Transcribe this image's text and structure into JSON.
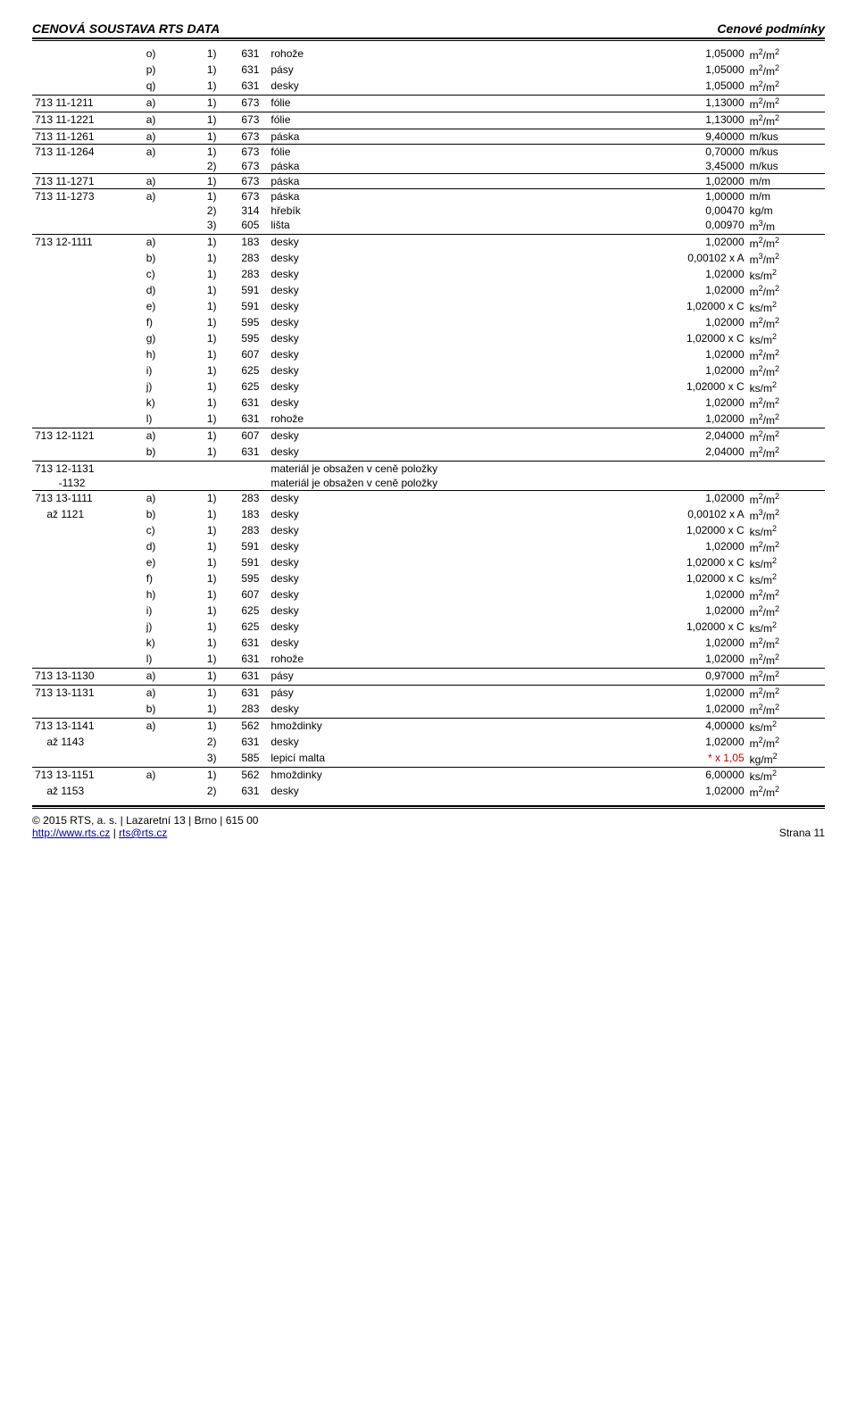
{
  "header": {
    "left": "CENOVÁ SOUSTAVA RTS DATA",
    "right": "Cenové podmínky"
  },
  "footer": {
    "left1": "© 2015 RTS, a. s. | Lazaretní 13 | Brno | 615 00",
    "left2a": "http://www.rts.cz",
    "left2b": " | ",
    "left2c": "rts@rts.cz",
    "right": "Strana 11"
  },
  "rows": [
    {
      "a": "",
      "b": "o)",
      "c": "1)",
      "d": "631",
      "e": "rohože",
      "f": "1,05000",
      "g": "m²/m²",
      "u": false
    },
    {
      "a": "",
      "b": "p)",
      "c": "1)",
      "d": "631",
      "e": "pásy",
      "f": "1,05000",
      "g": "m²/m²",
      "u": false
    },
    {
      "a": "",
      "b": "q)",
      "c": "1)",
      "d": "631",
      "e": "desky",
      "f": "1,05000",
      "g": "m²/m²",
      "u": true
    },
    {
      "a": "713 11-1211",
      "b": "a)",
      "c": "1)",
      "d": "673",
      "e": "fólie",
      "f": "1,13000",
      "g": "m²/m²",
      "u": true
    },
    {
      "a": "713 11-1221",
      "b": "a)",
      "c": "1)",
      "d": "673",
      "e": "fólie",
      "f": "1,13000",
      "g": "m²/m²",
      "u": true
    },
    {
      "a": "713 11-1261",
      "b": "a)",
      "c": "1)",
      "d": "673",
      "e": "páska",
      "f": "9,40000",
      "g": "m/kus",
      "u": true
    },
    {
      "a": "713 11-1264",
      "b": "a)",
      "c": "1)",
      "d": "673",
      "e": "fólie",
      "f": "0,70000",
      "g": "m/kus",
      "u": false
    },
    {
      "a": "",
      "b": "",
      "c": "2)",
      "d": "673",
      "e": "páska",
      "f": "3,45000",
      "g": "m/kus",
      "u": true
    },
    {
      "a": "713 11-1271",
      "b": "a)",
      "c": "1)",
      "d": "673",
      "e": "páska",
      "f": "1,02000",
      "g": "m/m",
      "u": true
    },
    {
      "a": "713 11-1273",
      "b": "a)",
      "c": "1)",
      "d": "673",
      "e": "páska",
      "f": "1,00000",
      "g": "m/m",
      "u": false
    },
    {
      "a": "",
      "b": "",
      "c": "2)",
      "d": "314",
      "e": "hřebík",
      "f": "0,00470",
      "g": "kg/m",
      "u": false
    },
    {
      "a": "",
      "b": "",
      "c": "3)",
      "d": "605",
      "e": "lišta",
      "f": "0,00970",
      "g": "m³/m",
      "u": true
    },
    {
      "a": "713 12-1111",
      "b": "a)",
      "c": "1)",
      "d": "183",
      "e": "desky",
      "f": "1,02000",
      "g": "m²/m²",
      "u": false
    },
    {
      "a": "",
      "b": "b)",
      "c": "1)",
      "d": "283",
      "e": "desky",
      "f": "0,00102 x A",
      "g": "m³/m²",
      "u": false
    },
    {
      "a": "",
      "b": "c)",
      "c": "1)",
      "d": "283",
      "e": "desky",
      "f": "1,02000",
      "g": "ks/m²",
      "u": false
    },
    {
      "a": "",
      "b": "d)",
      "c": "1)",
      "d": "591",
      "e": "desky",
      "f": "1,02000",
      "g": "m²/m²",
      "u": false
    },
    {
      "a": "",
      "b": "e)",
      "c": "1)",
      "d": "591",
      "e": "desky",
      "f": "1,02000 x C",
      "g": "ks/m²",
      "u": false
    },
    {
      "a": "",
      "b": "f)",
      "c": "1)",
      "d": "595",
      "e": "desky",
      "f": "1,02000",
      "g": "m²/m²",
      "u": false
    },
    {
      "a": "",
      "b": "g)",
      "c": "1)",
      "d": "595",
      "e": "desky",
      "f": "1,02000 x C",
      "g": "ks/m²",
      "u": false
    },
    {
      "a": "",
      "b": "h)",
      "c": "1)",
      "d": "607",
      "e": "desky",
      "f": "1,02000",
      "g": "m²/m²",
      "u": false
    },
    {
      "a": "",
      "b": "i)",
      "c": "1)",
      "d": "625",
      "e": "desky",
      "f": "1,02000",
      "g": "m²/m²",
      "u": false
    },
    {
      "a": "",
      "b": "j)",
      "c": "1)",
      "d": "625",
      "e": "desky",
      "f": "1,02000 x C",
      "g": "ks/m²",
      "u": false
    },
    {
      "a": "",
      "b": "k)",
      "c": "1)",
      "d": "631",
      "e": "desky",
      "f": "1,02000",
      "g": "m²/m²",
      "u": false
    },
    {
      "a": "",
      "b": "l)",
      "c": "1)",
      "d": "631",
      "e": "rohože",
      "f": "1,02000",
      "g": "m²/m²",
      "u": true
    },
    {
      "a": "713 12-1121",
      "b": "a)",
      "c": "1)",
      "d": "607",
      "e": "desky",
      "f": "2,04000",
      "g": "m²/m²",
      "u": false
    },
    {
      "a": "",
      "b": "b)",
      "c": "1)",
      "d": "631",
      "e": "desky",
      "f": "2,04000",
      "g": "m²/m²",
      "u": true
    },
    {
      "a": "713 12-1131",
      "b": "",
      "c": "",
      "d": "",
      "e": "materiál je obsažen v ceně položky",
      "f": "",
      "g": "",
      "u": false
    },
    {
      "a": "        -1132",
      "b": "",
      "c": "",
      "d": "",
      "e": "materiál je obsažen v ceně položky",
      "f": "",
      "g": "",
      "u": true
    },
    {
      "a": "713 13-1111",
      "b": "a)",
      "c": "1)",
      "d": "283",
      "e": "desky",
      "f": "1,02000",
      "g": "m²/m²",
      "u": false
    },
    {
      "a": "    až 1121",
      "b": "b)",
      "c": "1)",
      "d": "183",
      "e": "desky",
      "f": "0,00102 x A",
      "g": "m³/m²",
      "u": false
    },
    {
      "a": "",
      "b": "c)",
      "c": "1)",
      "d": "283",
      "e": "desky",
      "f": "1,02000 x C",
      "g": "ks/m²",
      "u": false
    },
    {
      "a": "",
      "b": "d)",
      "c": "1)",
      "d": "591",
      "e": "desky",
      "f": "1,02000",
      "g": "m²/m²",
      "u": false
    },
    {
      "a": "",
      "b": "e)",
      "c": "1)",
      "d": "591",
      "e": "desky",
      "f": "1,02000 x C",
      "g": "ks/m²",
      "u": false
    },
    {
      "a": "",
      "b": "f)",
      "c": "1)",
      "d": "595",
      "e": "desky",
      "f": "1,02000 x C",
      "g": "ks/m²",
      "u": false
    },
    {
      "a": "",
      "b": "h)",
      "c": "1)",
      "d": "607",
      "e": "desky",
      "f": "1,02000",
      "g": "m²/m²",
      "u": false
    },
    {
      "a": "",
      "b": "i)",
      "c": "1)",
      "d": "625",
      "e": "desky",
      "f": "1,02000",
      "g": "m²/m²",
      "u": false
    },
    {
      "a": "",
      "b": "j)",
      "c": "1)",
      "d": "625",
      "e": "desky",
      "f": "1,02000 x C",
      "g": "ks/m²",
      "u": false
    },
    {
      "a": "",
      "b": "k)",
      "c": "1)",
      "d": "631",
      "e": "desky",
      "f": "1,02000",
      "g": "m²/m²",
      "u": false
    },
    {
      "a": "",
      "b": "l)",
      "c": "1)",
      "d": "631",
      "e": "rohože",
      "f": "1,02000",
      "g": "m²/m²",
      "u": true
    },
    {
      "a": "713 13-1130",
      "b": "a)",
      "c": "1)",
      "d": "631",
      "e": "pásy",
      "f": "0,97000",
      "g": "m²/m²",
      "u": true
    },
    {
      "a": "713 13-1131",
      "b": "a)",
      "c": "1)",
      "d": "631",
      "e": "pásy",
      "f": "1,02000",
      "g": "m²/m²",
      "u": false
    },
    {
      "a": "",
      "b": "b)",
      "c": "1)",
      "d": "283",
      "e": "desky",
      "f": "1,02000",
      "g": "m²/m²",
      "u": true
    },
    {
      "a": "713 13-1141",
      "b": "a)",
      "c": "1)",
      "d": "562",
      "e": "hmoždinky",
      "f": "4,00000",
      "g": "ks/m²",
      "u": false
    },
    {
      "a": "    až 1143",
      "b": "",
      "c": "2)",
      "d": "631",
      "e": "desky",
      "f": "1,02000",
      "g": "m²/m²",
      "u": false
    },
    {
      "a": "",
      "b": "",
      "c": "3)",
      "d": "585",
      "e": "lepicí malta",
      "f": "* x 1,05",
      "g": "kg/m²",
      "u": true,
      "red": true
    },
    {
      "a": "713 13-1151",
      "b": "a)",
      "c": "1)",
      "d": "562",
      "e": "hmoždinky",
      "f": "6,00000",
      "g": "ks/m²",
      "u": false
    },
    {
      "a": "    až 1153",
      "b": "",
      "c": "2)",
      "d": "631",
      "e": "desky",
      "f": "1,02000",
      "g": "m²/m²",
      "u": false
    }
  ]
}
